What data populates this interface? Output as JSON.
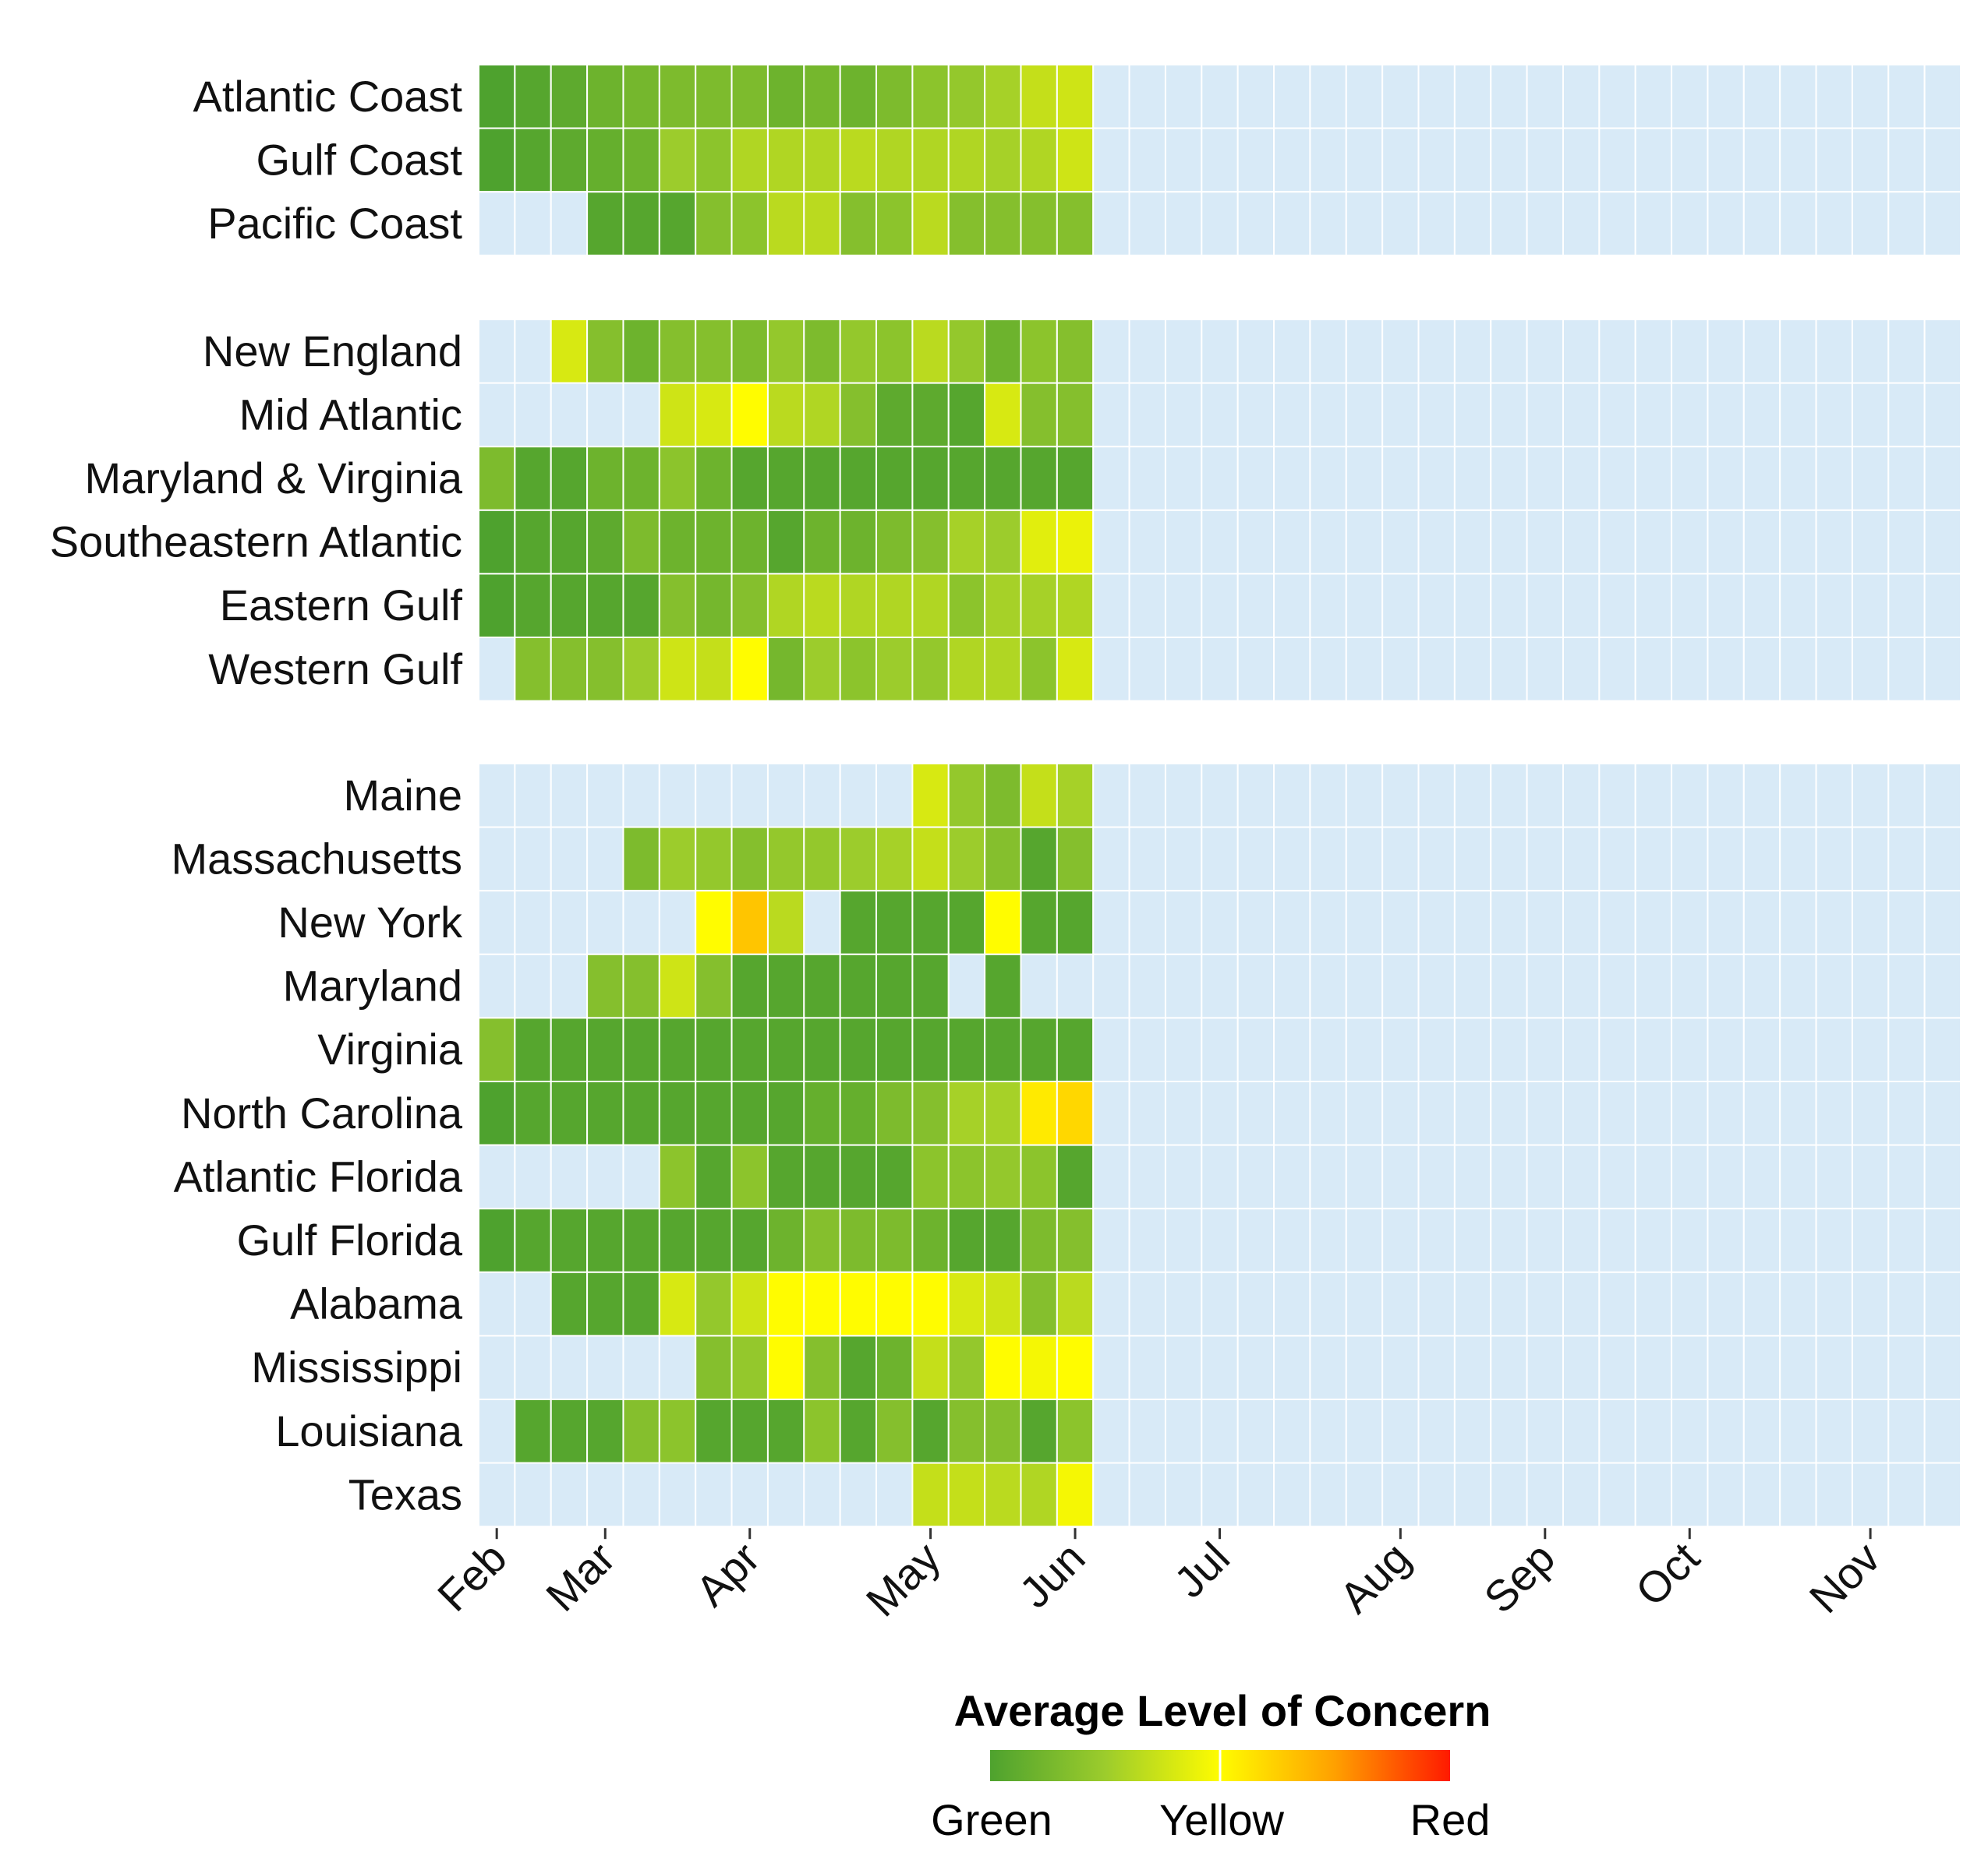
{
  "chart_data": {
    "type": "heatmap",
    "title": "",
    "xlabel": "",
    "ylabel": "",
    "x_tick_labels": [
      "Feb",
      "Mar",
      "Apr",
      "May",
      "Jun",
      "Jul",
      "Aug",
      "Sep",
      "Oct",
      "Nov"
    ],
    "n_columns": 41,
    "x_tick_positions": [
      0.5,
      3.5,
      7.5,
      12.5,
      16.5,
      20.5,
      25.5,
      29.5,
      33.5,
      38.5
    ],
    "value_scale": {
      "min": 0,
      "mid": 1,
      "max": 2,
      "labels": [
        "Green",
        "Yellow",
        "Red"
      ]
    },
    "missing_color": "#d8eaf7",
    "colors": {
      "green": "#4ea22e",
      "yellow": "#fffc00",
      "red": "#ff1a00",
      "missing": "#d8eaf7"
    },
    "legend": {
      "title": "Average Level of Concern",
      "labels": [
        "Green",
        "Yellow",
        "Red"
      ],
      "position": "bottom"
    },
    "groups": [
      {
        "rows": [
          {
            "label": "Atlantic Coast",
            "values": [
              0.0,
              0.05,
              0.1,
              0.2,
              0.25,
              0.3,
              0.3,
              0.3,
              0.2,
              0.25,
              0.2,
              0.3,
              0.4,
              0.45,
              0.55,
              0.7,
              0.75
            ]
          },
          {
            "label": "Gulf Coast",
            "values": [
              0.0,
              0.05,
              0.1,
              0.15,
              0.2,
              0.5,
              0.4,
              0.6,
              0.6,
              0.6,
              0.65,
              0.6,
              0.6,
              0.6,
              0.55,
              0.6,
              0.75
            ]
          },
          {
            "label": "Pacific Coast",
            "values": [
              null,
              null,
              null,
              0.05,
              0.05,
              0.05,
              0.35,
              0.4,
              0.65,
              0.65,
              0.35,
              0.4,
              0.65,
              0.35,
              0.35,
              0.35,
              0.35
            ]
          }
        ]
      },
      {
        "rows": [
          {
            "label": "New England",
            "values": [
              null,
              null,
              0.8,
              0.35,
              0.2,
              0.35,
              0.35,
              0.3,
              0.45,
              0.3,
              0.45,
              0.4,
              0.65,
              0.45,
              0.2,
              0.4,
              0.35
            ]
          },
          {
            "label": "Mid Atlantic",
            "values": [
              null,
              null,
              null,
              null,
              null,
              0.75,
              0.8,
              1.0,
              0.65,
              0.6,
              0.35,
              0.1,
              0.1,
              0.05,
              0.8,
              0.35,
              0.35
            ]
          },
          {
            "label": "Maryland & Virginia",
            "values": [
              0.3,
              0.05,
              0.05,
              0.2,
              0.2,
              0.4,
              0.2,
              0.05,
              0.05,
              0.05,
              0.05,
              0.05,
              0.05,
              0.05,
              0.05,
              0.05,
              0.05
            ]
          },
          {
            "label": "Southeastern Atlantic",
            "values": [
              0.0,
              0.05,
              0.05,
              0.1,
              0.3,
              0.2,
              0.2,
              0.2,
              0.05,
              0.2,
              0.2,
              0.3,
              0.35,
              0.55,
              0.5,
              0.85,
              0.9
            ]
          },
          {
            "label": "Eastern Gulf",
            "values": [
              0.0,
              0.05,
              0.05,
              0.05,
              0.05,
              0.35,
              0.25,
              0.35,
              0.6,
              0.65,
              0.6,
              0.6,
              0.6,
              0.4,
              0.55,
              0.55,
              0.6
            ]
          },
          {
            "label": "Western Gulf",
            "values": [
              null,
              0.35,
              0.35,
              0.35,
              0.5,
              0.75,
              0.7,
              1.0,
              0.25,
              0.5,
              0.4,
              0.5,
              0.45,
              0.6,
              0.6,
              0.4,
              0.8
            ]
          }
        ]
      },
      {
        "rows": [
          {
            "label": "Maine",
            "values": [
              null,
              null,
              null,
              null,
              null,
              null,
              null,
              null,
              null,
              null,
              null,
              null,
              0.8,
              0.45,
              0.3,
              0.7,
              0.55
            ]
          },
          {
            "label": "Massachusetts",
            "values": [
              null,
              null,
              null,
              null,
              0.3,
              0.5,
              0.45,
              0.35,
              0.45,
              0.45,
              0.5,
              0.55,
              0.7,
              0.5,
              0.35,
              0.05,
              0.35
            ]
          },
          {
            "label": "New York",
            "values": [
              null,
              null,
              null,
              null,
              null,
              null,
              1.0,
              1.3,
              0.65,
              null,
              0.05,
              0.05,
              0.05,
              0.05,
              1.0,
              0.05,
              0.05
            ]
          },
          {
            "label": "Maryland",
            "values": [
              null,
              null,
              null,
              0.35,
              0.35,
              0.75,
              0.35,
              0.05,
              0.05,
              0.05,
              0.05,
              0.05,
              0.05,
              null,
              0.05,
              null,
              null
            ]
          },
          {
            "label": "Virginia",
            "values": [
              0.35,
              0.05,
              0.05,
              0.05,
              0.05,
              0.05,
              0.05,
              0.05,
              0.05,
              0.05,
              0.05,
              0.05,
              0.05,
              0.05,
              0.05,
              0.05,
              0.05
            ]
          },
          {
            "label": "North Carolina",
            "values": [
              0.0,
              0.05,
              0.05,
              0.05,
              0.05,
              0.05,
              0.05,
              0.05,
              0.05,
              0.15,
              0.15,
              0.3,
              0.35,
              0.55,
              0.55,
              1.1,
              1.2
            ]
          },
          {
            "label": "Atlantic Florida",
            "values": [
              null,
              null,
              null,
              null,
              null,
              0.4,
              0.05,
              0.4,
              0.05,
              0.05,
              0.05,
              0.05,
              0.4,
              0.4,
              0.45,
              0.4,
              0.05
            ]
          },
          {
            "label": "Gulf Florida",
            "values": [
              0.0,
              0.05,
              0.05,
              0.05,
              0.05,
              0.05,
              0.05,
              0.05,
              0.2,
              0.35,
              0.3,
              0.3,
              0.2,
              0.05,
              0.05,
              0.3,
              0.35
            ]
          },
          {
            "label": "Alabama",
            "values": [
              null,
              null,
              0.05,
              0.05,
              0.05,
              0.8,
              0.45,
              0.75,
              1.0,
              1.0,
              1.0,
              1.0,
              1.0,
              0.8,
              0.75,
              0.35,
              0.65
            ]
          },
          {
            "label": "Mississippi",
            "values": [
              null,
              null,
              null,
              null,
              null,
              null,
              0.35,
              0.45,
              1.0,
              0.35,
              0.05,
              0.2,
              0.7,
              0.45,
              1.0,
              0.95,
              1.0
            ]
          },
          {
            "label": "Louisiana",
            "values": [
              null,
              0.05,
              0.05,
              0.05,
              0.35,
              0.4,
              0.05,
              0.05,
              0.05,
              0.4,
              0.05,
              0.35,
              0.05,
              0.35,
              0.35,
              0.05,
              0.4
            ]
          },
          {
            "label": "Texas",
            "values": [
              null,
              null,
              null,
              null,
              null,
              null,
              null,
              null,
              null,
              null,
              null,
              null,
              0.7,
              0.7,
              0.65,
              0.6,
              0.95
            ]
          }
        ]
      }
    ]
  }
}
